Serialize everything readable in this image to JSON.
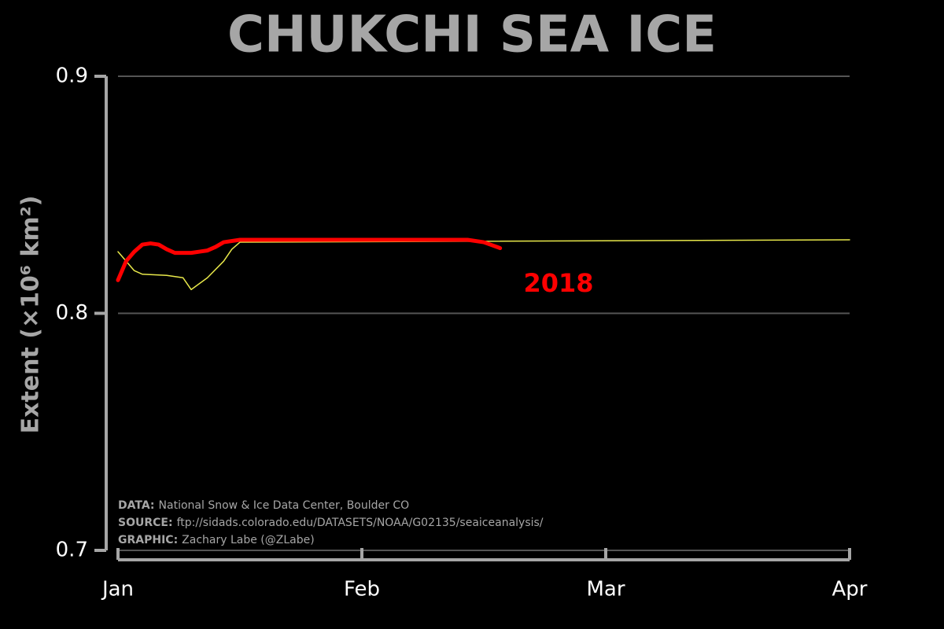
{
  "chart_data": {
    "type": "line",
    "title": "CHUKCHI SEA ICE",
    "y_label": "Extent (×10⁶ km²)",
    "annotation": "2018",
    "notes": [
      {
        "label": "DATA:",
        "text": "National Snow & Ice Data Center, Boulder CO"
      },
      {
        "label": "SOURCE:",
        "text": "ftp://sidads.colorado.edu/DATASETS/NOAA/G02135/seaiceanalysis/"
      },
      {
        "label": "GRAPHIC:",
        "text": "Zachary Labe (@ZLabe)"
      }
    ],
    "xlim": [
      0,
      90
    ],
    "xticks": [
      {
        "value": 0,
        "label": "Jan"
      },
      {
        "value": 30,
        "label": "Feb"
      },
      {
        "value": 60,
        "label": "Mar"
      },
      {
        "value": 90,
        "label": "Apr"
      }
    ],
    "ylim": [
      0.7,
      0.9
    ],
    "yticks": [
      0.7,
      0.8,
      0.9
    ],
    "grid": true,
    "series": [
      {
        "color": "#e8e84a",
        "width": 1.5,
        "x": [
          0,
          2,
          3,
          6,
          8,
          9,
          11,
          13,
          14,
          15,
          90
        ],
        "values": [
          0.826,
          0.818,
          0.8165,
          0.816,
          0.815,
          0.81,
          0.815,
          0.822,
          0.827,
          0.83,
          0.831
        ]
      },
      {
        "name": "2018",
        "color": "#ff0000",
        "width": 5,
        "x": [
          0,
          1,
          2,
          3,
          4,
          5,
          6,
          7,
          9,
          11,
          12,
          13,
          15,
          43,
          45,
          47
        ],
        "values": [
          0.814,
          0.822,
          0.826,
          0.829,
          0.8295,
          0.829,
          0.827,
          0.8255,
          0.8255,
          0.8265,
          0.828,
          0.83,
          0.831,
          0.831,
          0.83,
          0.8275
        ]
      }
    ]
  }
}
